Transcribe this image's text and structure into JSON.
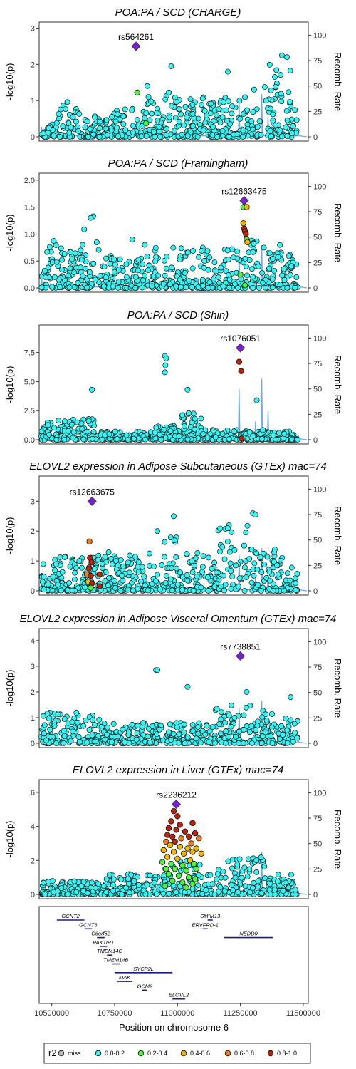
{
  "chart_data": {
    "type": "scatter",
    "colors": {
      "miss": "#bdbdbd",
      "r2_0_0_2": "#33f5f5",
      "r2_0_2_0_4": "#4cf53a",
      "r2_0_4_0_6": "#f5b800",
      "r2_0_6_0_8": "#f07a1f",
      "r2_0_8_1_0": "#b8240c",
      "lead": "#7b1fd6",
      "recomb": "#6fa8e6"
    },
    "y_axis_label": "-log10(p)",
    "y2_axis_label": "Recomb. Rate",
    "y2_range": [
      0,
      100
    ],
    "y2_ticks": [
      "0",
      "25",
      "50",
      "75",
      "100"
    ],
    "x_axis_label": "Position on chromosome 6",
    "x_range": [
      10450000,
      11520000
    ],
    "x_ticks": [
      "10500000",
      "10750000",
      "11000000",
      "11250000",
      "11500000"
    ],
    "panels": [
      {
        "title": "POA:PA / SCD (CHARGE)",
        "ylim": [
          0,
          3.05
        ],
        "y_ticks": [
          "0",
          "1",
          "2",
          "3"
        ],
        "lead_snp": {
          "label": "rs564261",
          "x": 10835000,
          "y": 2.5
        },
        "colored_points": [
          {
            "x": 10840000,
            "y": 1.22,
            "bin": "r2_0_2_0_4"
          },
          {
            "x": 10875000,
            "y": 0.37,
            "bin": "r2_0_2_0_4"
          }
        ]
      },
      {
        "title": "POA:PA / SCD (Framingham)",
        "ylim": [
          0,
          2.05
        ],
        "y_ticks": [
          "0.0",
          "0.5",
          "1.0",
          "1.5",
          "2.0"
        ],
        "lead_snp": {
          "label": "rs12663475",
          "x": 11265000,
          "y": 1.62
        },
        "colored_points": [
          {
            "x": 11262000,
            "y": 1.5,
            "bin": "r2_0_2_0_4"
          },
          {
            "x": 11275000,
            "y": 1.5,
            "bin": "r2_0_4_0_6"
          },
          {
            "x": 11262000,
            "y": 1.2,
            "bin": "r2_0_4_0_6"
          },
          {
            "x": 11265000,
            "y": 1.1,
            "bin": "r2_0_8_1_0"
          },
          {
            "x": 11268000,
            "y": 1.05,
            "bin": "r2_0_8_1_0"
          },
          {
            "x": 11272000,
            "y": 1.0,
            "bin": "r2_0_8_1_0"
          },
          {
            "x": 11275000,
            "y": 0.9,
            "bin": "r2_0_2_0_4"
          },
          {
            "x": 11278000,
            "y": 0.85,
            "bin": "r2_0_4_0_6"
          },
          {
            "x": 11250000,
            "y": 0.25,
            "bin": "r2_0_2_0_4"
          },
          {
            "x": 11268000,
            "y": 0.05,
            "bin": "r2_0_2_0_4"
          }
        ]
      },
      {
        "title": "POA:PA / SCD (Shin)",
        "ylim": [
          0,
          9.5
        ],
        "y_ticks": [
          "0.0",
          "2.5",
          "5.0",
          "7.5"
        ],
        "lead_snp": {
          "label": "rs1076051",
          "x": 11250000,
          "y": 7.9
        },
        "colored_points": [
          {
            "x": 11245000,
            "y": 6.7,
            "bin": "r2_0_8_1_0"
          },
          {
            "x": 11253000,
            "y": 5.9,
            "bin": "r2_0_8_1_0"
          },
          {
            "x": 11255000,
            "y": 0.1,
            "bin": "r2_0_8_1_0"
          }
        ]
      },
      {
        "title": "ELOVL2 expression in Adipose Subcutaneous (GTEx) mac=74",
        "ylim": [
          0,
          3.7
        ],
        "y_ticks": [
          "0",
          "1",
          "2",
          "3"
        ],
        "lead_snp": {
          "label": "rs12663675",
          "x": 10660000,
          "y": 3.0
        },
        "colored_points": [
          {
            "x": 10650000,
            "y": 1.65,
            "bin": "r2_0_6_0_8"
          },
          {
            "x": 10652000,
            "y": 1.1,
            "bin": "r2_0_8_1_0"
          },
          {
            "x": 10658000,
            "y": 0.95,
            "bin": "r2_0_8_1_0"
          },
          {
            "x": 10648000,
            "y": 0.75,
            "bin": "r2_0_8_1_0"
          },
          {
            "x": 10640000,
            "y": 0.55,
            "bin": "r2_0_6_0_8"
          },
          {
            "x": 10655000,
            "y": 0.5,
            "bin": "r2_0_8_1_0"
          },
          {
            "x": 10690000,
            "y": 0.55,
            "bin": "r2_0_8_1_0"
          },
          {
            "x": 10645000,
            "y": 0.3,
            "bin": "r2_0_4_0_6"
          },
          {
            "x": 10660000,
            "y": 0.25,
            "bin": "r2_0_8_1_0"
          },
          {
            "x": 10655000,
            "y": 0.1,
            "bin": "r2_0_2_0_4"
          },
          {
            "x": 10690000,
            "y": 0.15,
            "bin": "r2_0_8_1_0"
          }
        ]
      },
      {
        "title": "ELOVL2 expression in Adipose Visceral Omentum (GTEx) mac=74",
        "ylim": [
          0,
          4.3
        ],
        "y_ticks": [
          "0",
          "1",
          "2",
          "3",
          "4"
        ],
        "lead_snp": {
          "label": "rs7738851",
          "x": 11250000,
          "y": 3.4
        },
        "colored_points": []
      },
      {
        "title": "ELOVL2 expression in Liver (GTEx) mac=74",
        "ylim": [
          0,
          6.5
        ],
        "y_ticks": [
          "0",
          "2",
          "4",
          "6"
        ],
        "lead_snp": {
          "label": "rs2236212",
          "x": 10995000,
          "y": 5.3
        },
        "colored_points": []
      }
    ],
    "genes": [
      {
        "name": "GCNT2",
        "start": 10520000,
        "end": 10630000,
        "row": 0
      },
      {
        "name": "GCNT6",
        "start": 10630000,
        "end": 10660000,
        "row": 1
      },
      {
        "name": "C6orf52",
        "start": 10680000,
        "end": 10710000,
        "row": 2
      },
      {
        "name": "PAK1IP1",
        "start": 10690000,
        "end": 10720000,
        "row": 3
      },
      {
        "name": "TMEM14C",
        "start": 10720000,
        "end": 10740000,
        "row": 4
      },
      {
        "name": "TMEM14B",
        "start": 10740000,
        "end": 10770000,
        "row": 5
      },
      {
        "name": "SYCP2L",
        "start": 10750000,
        "end": 10980000,
        "row": 6
      },
      {
        "name": "MAK",
        "start": 10760000,
        "end": 10820000,
        "row": 7
      },
      {
        "name": "GCM2",
        "start": 10860000,
        "end": 10880000,
        "row": 8
      },
      {
        "name": "ELOVL2",
        "start": 10980000,
        "end": 11030000,
        "row": 9
      },
      {
        "name": "SMIM13",
        "start": 11120000,
        "end": 11140000,
        "row": 0
      },
      {
        "name": "ERVFRD-1",
        "start": 11100000,
        "end": 11120000,
        "row": 1
      },
      {
        "name": "NEDD9",
        "start": 11185000,
        "end": 11380000,
        "row": 2
      }
    ],
    "legend": {
      "title": "r2",
      "entries": [
        {
          "label": "miss",
          "color_key": "miss"
        },
        {
          "label": "0.0-0.2",
          "color_key": "r2_0_0_2"
        },
        {
          "label": "0.2-0.4",
          "color_key": "r2_0_2_0_4"
        },
        {
          "label": "0.4-0.6",
          "color_key": "r2_0_4_0_6"
        },
        {
          "label": "0.6-0.8",
          "color_key": "r2_0_6_0_8"
        },
        {
          "label": "0.8-1.0",
          "color_key": "r2_0_8_1_0"
        }
      ]
    }
  }
}
